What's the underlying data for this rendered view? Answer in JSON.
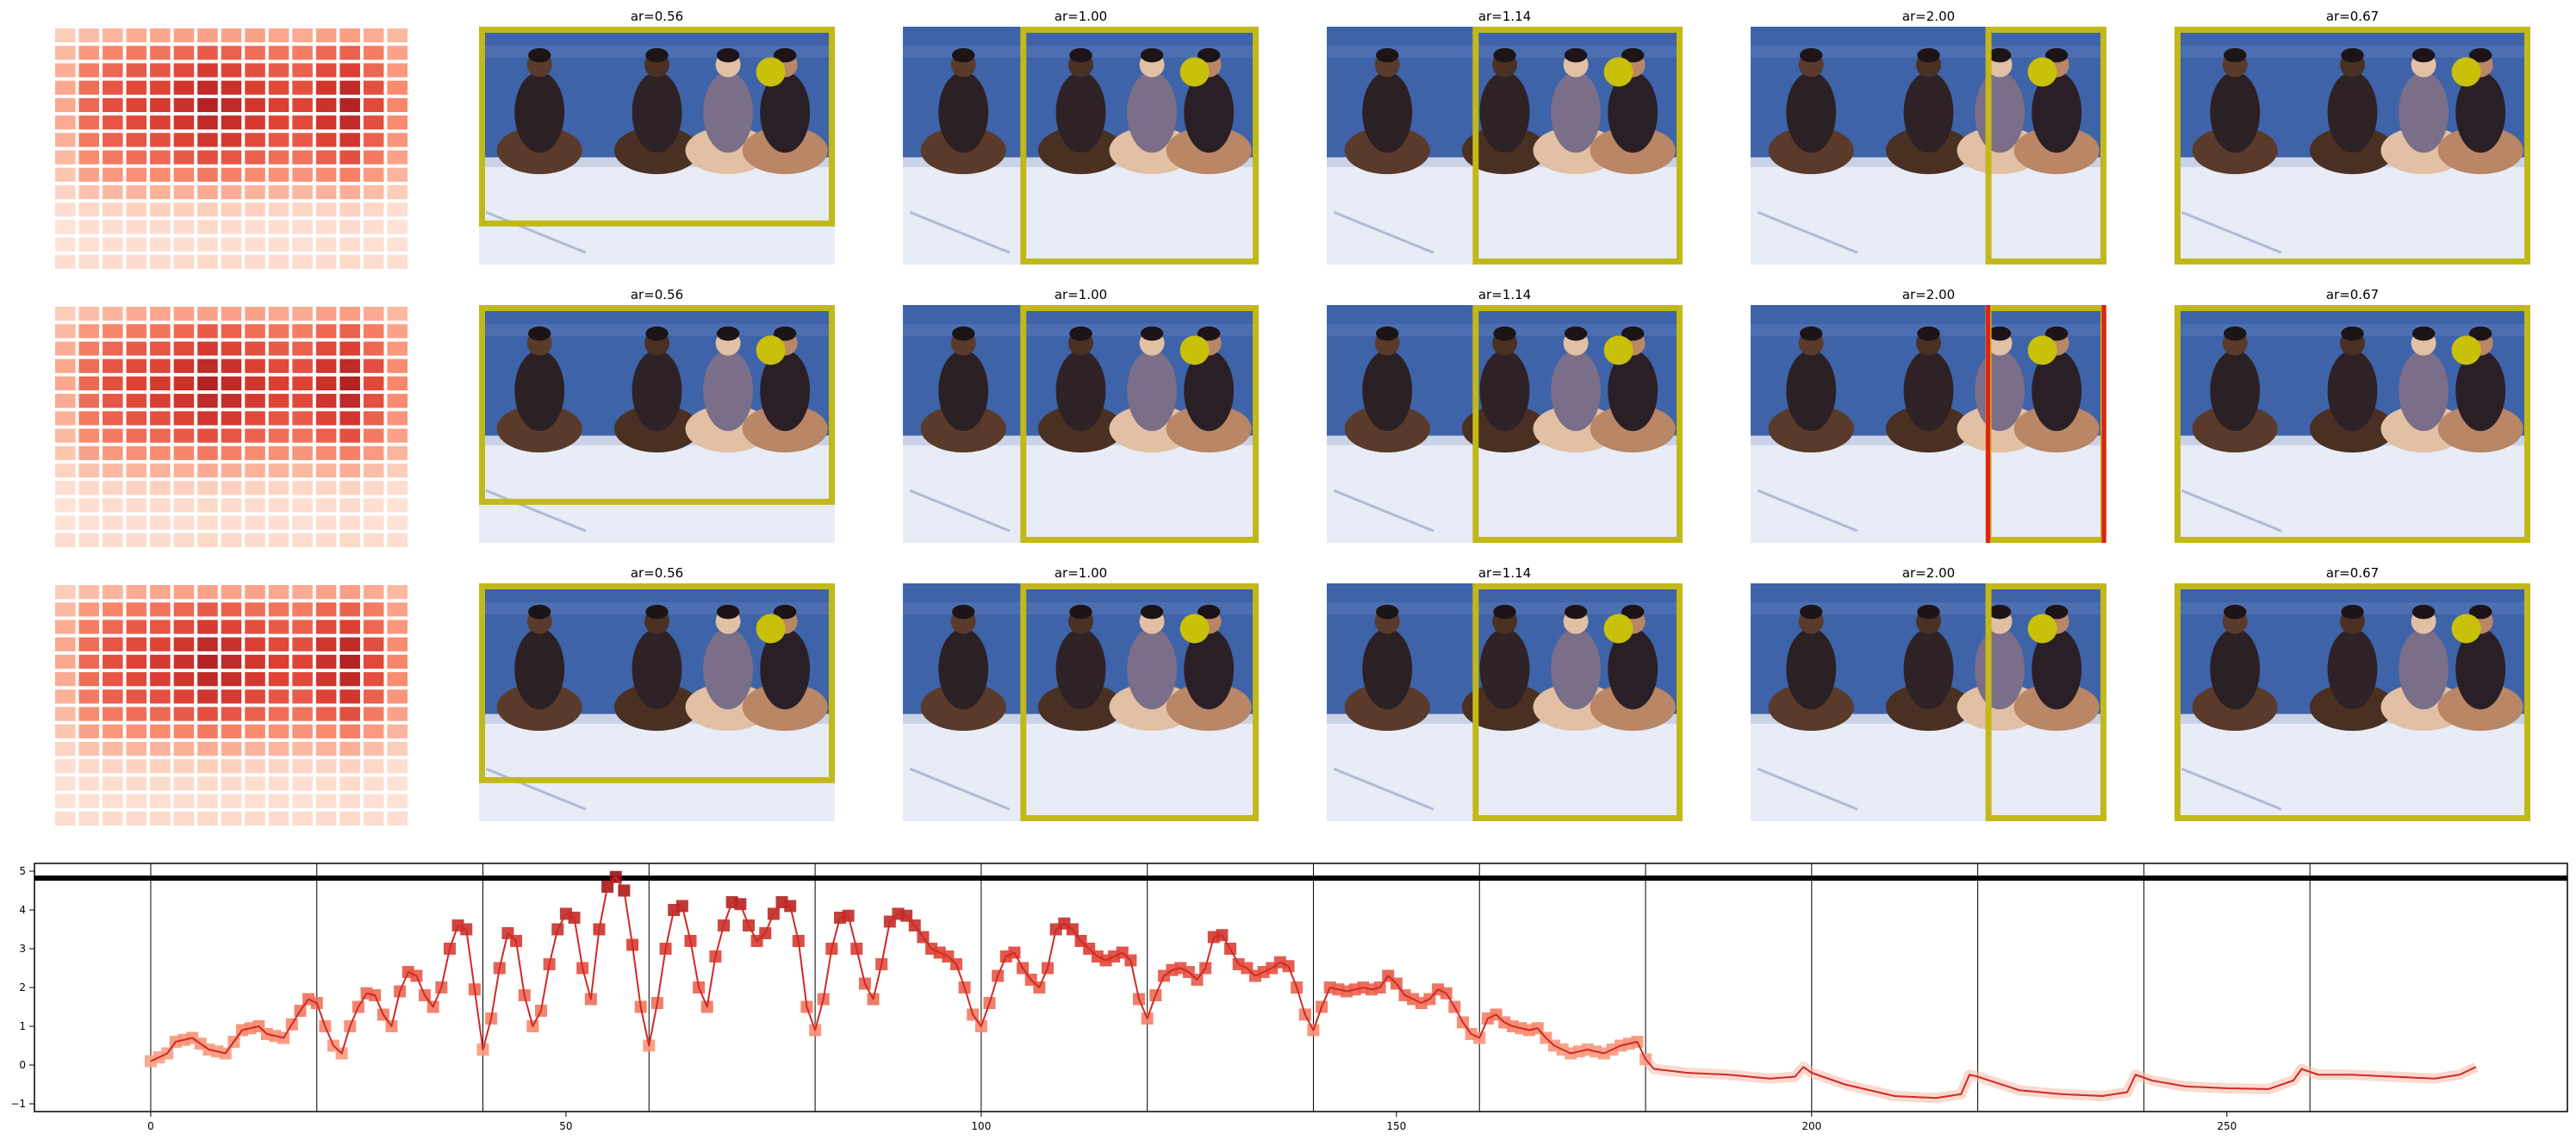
{
  "colors": {
    "crop_box": "#c2b81a",
    "marker": "#c9c00a",
    "alert_line": "#e0201a",
    "line": "#cf2a24",
    "sky": "#3e63a8",
    "floor": "#e8ecf6"
  },
  "grid_rows": [
    {
      "tiles": [
        {
          "label": "ar=0.56",
          "box": [
            0.0,
            0.0,
            1.0,
            0.84
          ],
          "alert": false
        },
        {
          "label": "ar=1.00",
          "box": [
            0.33,
            0.0,
            1.0,
            1.0
          ],
          "alert": false
        },
        {
          "label": "ar=1.14",
          "box": [
            0.41,
            0.0,
            1.0,
            1.0
          ],
          "alert": false
        },
        {
          "label": "ar=2.00",
          "box": [
            0.66,
            0.0,
            1.0,
            1.0
          ],
          "alert": false
        },
        {
          "label": "ar=0.67",
          "box": [
            0.0,
            0.0,
            1.0,
            1.0
          ],
          "alert": false
        }
      ]
    },
    {
      "tiles": [
        {
          "label": "ar=0.56",
          "box": [
            0.0,
            0.0,
            1.0,
            0.84
          ],
          "alert": false
        },
        {
          "label": "ar=1.00",
          "box": [
            0.33,
            0.0,
            1.0,
            1.0
          ],
          "alert": false
        },
        {
          "label": "ar=1.14",
          "box": [
            0.41,
            0.0,
            1.0,
            1.0
          ],
          "alert": false
        },
        {
          "label": "ar=2.00",
          "box": [
            0.66,
            0.0,
            1.0,
            1.0
          ],
          "alert": true
        },
        {
          "label": "ar=0.67",
          "box": [
            0.0,
            0.0,
            1.0,
            1.0
          ],
          "alert": false
        }
      ]
    },
    {
      "tiles": [
        {
          "label": "ar=0.56",
          "box": [
            0.0,
            0.0,
            1.0,
            0.84
          ],
          "alert": false
        },
        {
          "label": "ar=1.00",
          "box": [
            0.33,
            0.0,
            1.0,
            1.0
          ],
          "alert": false
        },
        {
          "label": "ar=1.14",
          "box": [
            0.41,
            0.0,
            1.0,
            1.0
          ],
          "alert": false
        },
        {
          "label": "ar=2.00",
          "box": [
            0.66,
            0.0,
            1.0,
            1.0
          ],
          "alert": false
        },
        {
          "label": "ar=0.67",
          "box": [
            0.0,
            0.0,
            1.0,
            1.0
          ],
          "alert": false
        }
      ]
    }
  ],
  "heatmap": {
    "cols": 15,
    "rows": 14,
    "values": [
      [
        0.2,
        0.28,
        0.32,
        0.36,
        0.38,
        0.4,
        0.4,
        0.4,
        0.4,
        0.38,
        0.36,
        0.4,
        0.42,
        0.36,
        0.3
      ],
      [
        0.3,
        0.45,
        0.52,
        0.56,
        0.58,
        0.62,
        0.66,
        0.64,
        0.6,
        0.58,
        0.55,
        0.62,
        0.64,
        0.55,
        0.4
      ],
      [
        0.35,
        0.55,
        0.62,
        0.66,
        0.68,
        0.72,
        0.78,
        0.74,
        0.7,
        0.66,
        0.64,
        0.72,
        0.76,
        0.62,
        0.45
      ],
      [
        0.38,
        0.6,
        0.68,
        0.72,
        0.74,
        0.8,
        0.86,
        0.82,
        0.76,
        0.72,
        0.7,
        0.8,
        0.86,
        0.7,
        0.5
      ],
      [
        0.38,
        0.62,
        0.7,
        0.74,
        0.78,
        0.82,
        0.9,
        0.86,
        0.8,
        0.76,
        0.74,
        0.82,
        0.9,
        0.72,
        0.52
      ],
      [
        0.36,
        0.6,
        0.68,
        0.72,
        0.76,
        0.8,
        0.86,
        0.84,
        0.78,
        0.74,
        0.72,
        0.8,
        0.86,
        0.7,
        0.5
      ],
      [
        0.34,
        0.56,
        0.64,
        0.68,
        0.7,
        0.74,
        0.8,
        0.78,
        0.72,
        0.68,
        0.66,
        0.74,
        0.8,
        0.64,
        0.46
      ],
      [
        0.3,
        0.5,
        0.56,
        0.6,
        0.62,
        0.66,
        0.7,
        0.68,
        0.64,
        0.6,
        0.58,
        0.64,
        0.7,
        0.56,
        0.4
      ],
      [
        0.24,
        0.4,
        0.45,
        0.48,
        0.5,
        0.52,
        0.56,
        0.54,
        0.5,
        0.48,
        0.46,
        0.5,
        0.54,
        0.44,
        0.32
      ],
      [
        0.16,
        0.26,
        0.3,
        0.32,
        0.33,
        0.34,
        0.36,
        0.35,
        0.33,
        0.32,
        0.3,
        0.33,
        0.35,
        0.28,
        0.2
      ],
      [
        0.1,
        0.14,
        0.16,
        0.17,
        0.18,
        0.18,
        0.19,
        0.18,
        0.17,
        0.16,
        0.15,
        0.16,
        0.17,
        0.14,
        0.1
      ],
      [
        0.08,
        0.1,
        0.11,
        0.12,
        0.12,
        0.12,
        0.13,
        0.12,
        0.11,
        0.11,
        0.1,
        0.11,
        0.12,
        0.1,
        0.08
      ],
      [
        0.08,
        0.09,
        0.1,
        0.1,
        0.1,
        0.11,
        0.11,
        0.11,
        0.1,
        0.1,
        0.09,
        0.1,
        0.11,
        0.09,
        0.08
      ],
      [
        0.1,
        0.11,
        0.12,
        0.12,
        0.12,
        0.13,
        0.13,
        0.13,
        0.12,
        0.12,
        0.11,
        0.12,
        0.13,
        0.11,
        0.1
      ]
    ]
  },
  "chart_data": {
    "type": "line",
    "title": "",
    "xlabel": "",
    "ylabel": "",
    "xlim": [
      -14,
      291
    ],
    "ylim": [
      -1.2,
      5.2
    ],
    "x_ticks": [
      0,
      50,
      100,
      150,
      200,
      250
    ],
    "y_ticks": [
      -1,
      0,
      1,
      2,
      3,
      4,
      5
    ],
    "vertical_lines": [
      0,
      20,
      40,
      60,
      80,
      100,
      120,
      140,
      160,
      180,
      200,
      220,
      240,
      260
    ],
    "threshold": 4.82,
    "marker_end_x": 180,
    "grid": false,
    "legend": "none",
    "series": [
      {
        "knots": [
          [
            0,
            0.1
          ],
          [
            2,
            0.3
          ],
          [
            3,
            0.6
          ],
          [
            5,
            0.7
          ],
          [
            7,
            0.4
          ],
          [
            9,
            0.3
          ],
          [
            11,
            0.9
          ],
          [
            13,
            1.0
          ],
          [
            14,
            0.8
          ],
          [
            16,
            0.7
          ],
          [
            18,
            1.4
          ],
          [
            19,
            1.7
          ],
          [
            20,
            1.6
          ],
          [
            21,
            1.0
          ],
          [
            22,
            0.5
          ],
          [
            23,
            0.3
          ],
          [
            24,
            1.0
          ],
          [
            25,
            1.5
          ],
          [
            26,
            1.85
          ],
          [
            27,
            1.8
          ],
          [
            28,
            1.3
          ],
          [
            29,
            1.0
          ],
          [
            30,
            1.9
          ],
          [
            31,
            2.4
          ],
          [
            32,
            2.3
          ],
          [
            33,
            1.8
          ],
          [
            34,
            1.5
          ],
          [
            35,
            2.0
          ],
          [
            36,
            3.0
          ],
          [
            37,
            3.6
          ],
          [
            38,
            3.5
          ],
          [
            40,
            0.4
          ],
          [
            41,
            1.2
          ],
          [
            42,
            2.5
          ],
          [
            43,
            3.4
          ],
          [
            44,
            3.2
          ],
          [
            45,
            1.8
          ],
          [
            46,
            1.0
          ],
          [
            47,
            1.4
          ],
          [
            48,
            2.6
          ],
          [
            49,
            3.5
          ],
          [
            50,
            3.9
          ],
          [
            51,
            3.8
          ],
          [
            52,
            2.5
          ],
          [
            53,
            1.7
          ],
          [
            54,
            3.5
          ],
          [
            55,
            4.6
          ],
          [
            56,
            4.85
          ],
          [
            57,
            4.5
          ],
          [
            58,
            3.1
          ],
          [
            59,
            1.5
          ],
          [
            60,
            0.5
          ],
          [
            61,
            1.6
          ],
          [
            62,
            3.0
          ],
          [
            63,
            4.0
          ],
          [
            64,
            4.1
          ],
          [
            65,
            3.2
          ],
          [
            66,
            2.0
          ],
          [
            67,
            1.5
          ],
          [
            68,
            2.8
          ],
          [
            69,
            3.6
          ],
          [
            70,
            4.2
          ],
          [
            71,
            4.15
          ],
          [
            72,
            3.6
          ],
          [
            73,
            3.2
          ],
          [
            74,
            3.4
          ],
          [
            75,
            3.9
          ],
          [
            76,
            4.2
          ],
          [
            77,
            4.1
          ],
          [
            78,
            3.2
          ],
          [
            79,
            1.5
          ],
          [
            80,
            0.9
          ],
          [
            81,
            1.7
          ],
          [
            82,
            3.0
          ],
          [
            83,
            3.8
          ],
          [
            84,
            3.85
          ],
          [
            85,
            3.0
          ],
          [
            86,
            2.1
          ],
          [
            87,
            1.7
          ],
          [
            88,
            2.6
          ],
          [
            89,
            3.7
          ],
          [
            90,
            3.9
          ],
          [
            91,
            3.85
          ],
          [
            92,
            3.6
          ],
          [
            93,
            3.3
          ],
          [
            94,
            3.0
          ],
          [
            95,
            2.9
          ],
          [
            96,
            2.8
          ],
          [
            97,
            2.6
          ],
          [
            98,
            2.0
          ],
          [
            99,
            1.3
          ],
          [
            100,
            1.0
          ],
          [
            101,
            1.6
          ],
          [
            102,
            2.3
          ],
          [
            103,
            2.8
          ],
          [
            104,
            2.9
          ],
          [
            105,
            2.5
          ],
          [
            106,
            2.2
          ],
          [
            107,
            2.0
          ],
          [
            108,
            2.5
          ],
          [
            109,
            3.5
          ],
          [
            110,
            3.65
          ],
          [
            111,
            3.5
          ],
          [
            112,
            3.2
          ],
          [
            113,
            3.0
          ],
          [
            114,
            2.8
          ],
          [
            115,
            2.7
          ],
          [
            116,
            2.8
          ],
          [
            117,
            2.9
          ],
          [
            118,
            2.7
          ],
          [
            119,
            1.7
          ],
          [
            120,
            1.2
          ],
          [
            121,
            1.8
          ],
          [
            122,
            2.3
          ],
          [
            123,
            2.45
          ],
          [
            124,
            2.5
          ],
          [
            125,
            2.4
          ],
          [
            126,
            2.2
          ],
          [
            127,
            2.5
          ],
          [
            128,
            3.3
          ],
          [
            129,
            3.35
          ],
          [
            130,
            3.0
          ],
          [
            131,
            2.6
          ],
          [
            132,
            2.5
          ],
          [
            133,
            2.3
          ],
          [
            134,
            2.4
          ],
          [
            135,
            2.5
          ],
          [
            136,
            2.65
          ],
          [
            137,
            2.55
          ],
          [
            138,
            2.0
          ],
          [
            139,
            1.3
          ],
          [
            140,
            0.9
          ],
          [
            141,
            1.5
          ],
          [
            142,
            2.0
          ],
          [
            143,
            1.95
          ],
          [
            144,
            1.9
          ],
          [
            145,
            1.95
          ],
          [
            146,
            2.0
          ],
          [
            147,
            1.95
          ],
          [
            148,
            2.0
          ],
          [
            149,
            2.3
          ],
          [
            150,
            2.1
          ],
          [
            151,
            1.8
          ],
          [
            152,
            1.7
          ],
          [
            153,
            1.6
          ],
          [
            154,
            1.7
          ],
          [
            155,
            1.95
          ],
          [
            156,
            1.85
          ],
          [
            157,
            1.5
          ],
          [
            158,
            1.1
          ],
          [
            159,
            0.8
          ],
          [
            160,
            0.7
          ],
          [
            161,
            1.2
          ],
          [
            162,
            1.3
          ],
          [
            163,
            1.1
          ],
          [
            164,
            1.0
          ],
          [
            165,
            0.95
          ],
          [
            166,
            0.9
          ],
          [
            167,
            0.95
          ],
          [
            168,
            0.7
          ],
          [
            169,
            0.5
          ],
          [
            170,
            0.4
          ],
          [
            171,
            0.3
          ],
          [
            172,
            0.35
          ],
          [
            173,
            0.4
          ],
          [
            174,
            0.35
          ],
          [
            175,
            0.3
          ],
          [
            176,
            0.4
          ],
          [
            177,
            0.5
          ],
          [
            178,
            0.55
          ],
          [
            179,
            0.6
          ],
          [
            180,
            0.15
          ],
          [
            181,
            -0.1
          ],
          [
            185,
            -0.2
          ],
          [
            190,
            -0.25
          ],
          [
            195,
            -0.35
          ],
          [
            198,
            -0.3
          ],
          [
            199,
            -0.05
          ],
          [
            200,
            -0.2
          ],
          [
            204,
            -0.5
          ],
          [
            210,
            -0.8
          ],
          [
            215,
            -0.85
          ],
          [
            218,
            -0.75
          ],
          [
            219,
            -0.25
          ],
          [
            220,
            -0.3
          ],
          [
            225,
            -0.65
          ],
          [
            230,
            -0.75
          ],
          [
            235,
            -0.8
          ],
          [
            238,
            -0.7
          ],
          [
            239,
            -0.25
          ],
          [
            241,
            -0.4
          ],
          [
            245,
            -0.55
          ],
          [
            250,
            -0.6
          ],
          [
            255,
            -0.62
          ],
          [
            258,
            -0.4
          ],
          [
            259,
            -0.1
          ],
          [
            261,
            -0.25
          ],
          [
            265,
            -0.25
          ],
          [
            270,
            -0.3
          ],
          [
            275,
            -0.35
          ],
          [
            278,
            -0.25
          ],
          [
            280,
            -0.05
          ]
        ]
      }
    ]
  }
}
